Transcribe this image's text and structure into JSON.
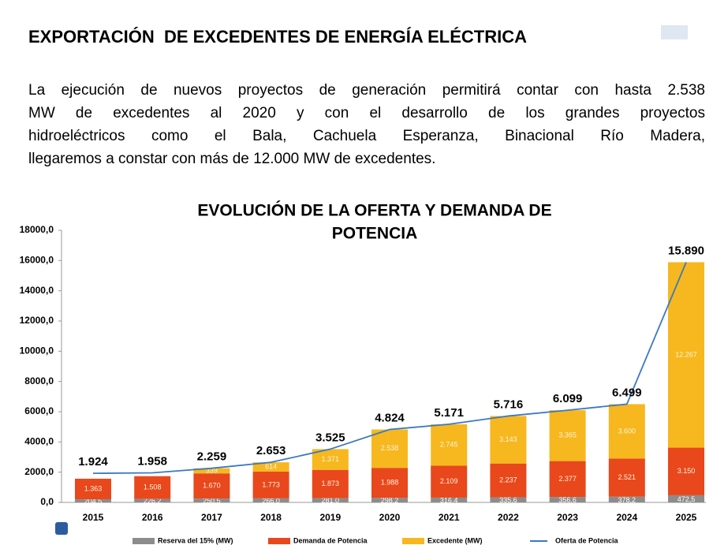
{
  "header": {
    "title": "EXPORTACIÓN  DE EXCEDENTES DE ENERGÍA ELÉCTRICA",
    "paragraph": [
      "La ejecución de nuevos proyectos de generación permitirá contar con hasta 2.538",
      "MW de excedentes al 2020  y con el desarrollo de los grandes proyectos",
      "hidroeléctricos como el Bala, Cachuela Esperanza, Binacional Río Madera,",
      "llegaremos a constar con más de 12.000 MW de excedentes."
    ]
  },
  "chart_data": {
    "type": "bar",
    "stacked": true,
    "title": [
      "EVOLUCIÓN DE LA OFERTA Y DEMANDA DE",
      "POTENCIA"
    ],
    "categories": [
      "2015",
      "2016",
      "2017",
      "2018",
      "2019",
      "2020",
      "2021",
      "2022",
      "2023",
      "2024",
      "2025"
    ],
    "ylim": [
      0,
      18000
    ],
    "yticks": [
      {
        "value": 0,
        "label": "0,0"
      },
      {
        "value": 2000,
        "label": "2000,0"
      },
      {
        "value": 4000,
        "label": "4000,0"
      },
      {
        "value": 6000,
        "label": "6000,0"
      },
      {
        "value": 8000,
        "label": "8000,0"
      },
      {
        "value": 10000,
        "label": "10000,0"
      },
      {
        "value": 12000,
        "label": "12000,0"
      },
      {
        "value": 14000,
        "label": "14000,0"
      },
      {
        "value": 16000,
        "label": "16000,0"
      },
      {
        "value": 18000,
        "label": "18000,0"
      }
    ],
    "series": [
      {
        "name": "Reserva del 15% (MW)",
        "type": "bar",
        "color": "#8c8c8c",
        "values": [
          204.5,
          226.2,
          250.5,
          266.0,
          281.0,
          298.2,
          316.4,
          335.6,
          356.6,
          378.2,
          472.5
        ],
        "value_labels": [
          "204,5",
          "226,2",
          "250,5",
          "266,0",
          "281,0",
          "298,2",
          "316,4",
          "335,6",
          "356,6",
          "378,2",
          "472,5"
        ]
      },
      {
        "name": "Demanda de Potencia",
        "type": "bar",
        "color": "#e8481c",
        "values": [
          1363,
          1508,
          1670,
          1773,
          1873,
          1988,
          2109,
          2237,
          2377,
          2521,
          3150
        ],
        "value_labels": [
          "1.363",
          "1.508",
          "1.670",
          "1.773",
          "1.873",
          "1.988",
          "2.109",
          "2.237",
          "2.377",
          "2.521",
          "3.150"
        ]
      },
      {
        "name": "Excedente (MW)",
        "type": "bar",
        "color": "#f6b81e",
        "values": [
          null,
          null,
          339,
          614,
          1371,
          2538,
          2745,
          3143,
          3365,
          3600,
          12267
        ],
        "value_labels": [
          null,
          null,
          "339",
          "614",
          "1.371",
          "2.538",
          "2.745",
          "3.143",
          "3.365",
          "3.600",
          "12.267"
        ]
      },
      {
        "name": "Oferta de Potencia",
        "type": "line",
        "color": "#3a78c3",
        "values": [
          1924,
          1958,
          2259,
          2653,
          3525,
          4824,
          5171,
          5716,
          6099,
          6499,
          15890
        ],
        "value_labels": [
          "1.924",
          "1.958",
          "2.259",
          "2.653",
          "3.525",
          "4.824",
          "5.171",
          "5.716",
          "6.099",
          "6.499",
          "15.890"
        ]
      }
    ]
  }
}
